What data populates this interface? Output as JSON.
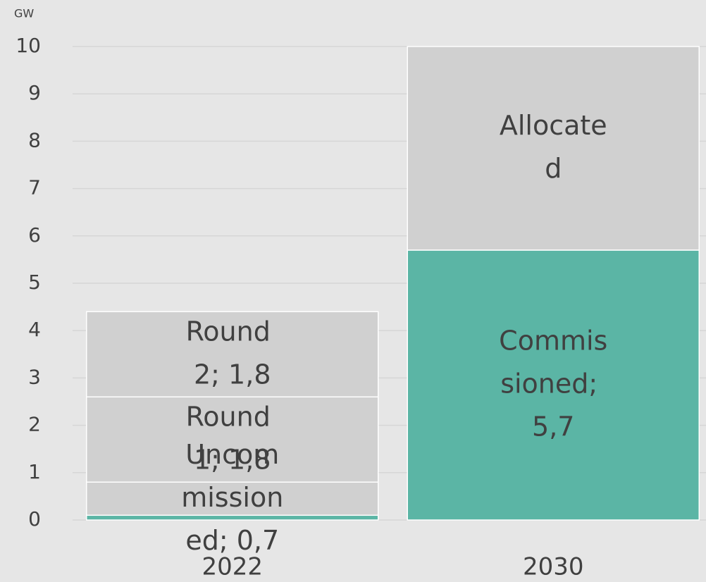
{
  "chart_data": {
    "type": "stacked_bar",
    "y_label": "GW",
    "categories": [
      "2022",
      "2030"
    ],
    "series": [
      {
        "name": "Commissioned",
        "color": "#5bb5a5",
        "values": [
          0.1,
          5.7
        ],
        "value_labels": [
          null,
          "Commissioned; 5,7"
        ]
      },
      {
        "name": "Uncommissioned",
        "color": "#d0d0d0",
        "values": [
          0.7,
          null
        ],
        "value_labels": [
          "Uncommissioned; 0,7",
          null
        ]
      },
      {
        "name": "Round 1",
        "color": "#d0d0d0",
        "values": [
          1.8,
          null
        ],
        "value_labels": [
          "Round 1; 1,8",
          null
        ]
      },
      {
        "name": "Round 2",
        "color": "#d0d0d0",
        "values": [
          1.8,
          null
        ],
        "value_labels": [
          "Round 2; 1,8",
          null
        ]
      },
      {
        "name": "Allocated",
        "color": "#d0d0d0",
        "values": [
          null,
          4.3
        ],
        "value_labels": [
          null,
          "Allocated"
        ]
      }
    ],
    "ylim": [
      0,
      10
    ],
    "yticks": [
      0,
      1,
      2,
      3,
      4,
      5,
      6,
      7,
      8,
      9,
      10
    ],
    "grid": true
  }
}
